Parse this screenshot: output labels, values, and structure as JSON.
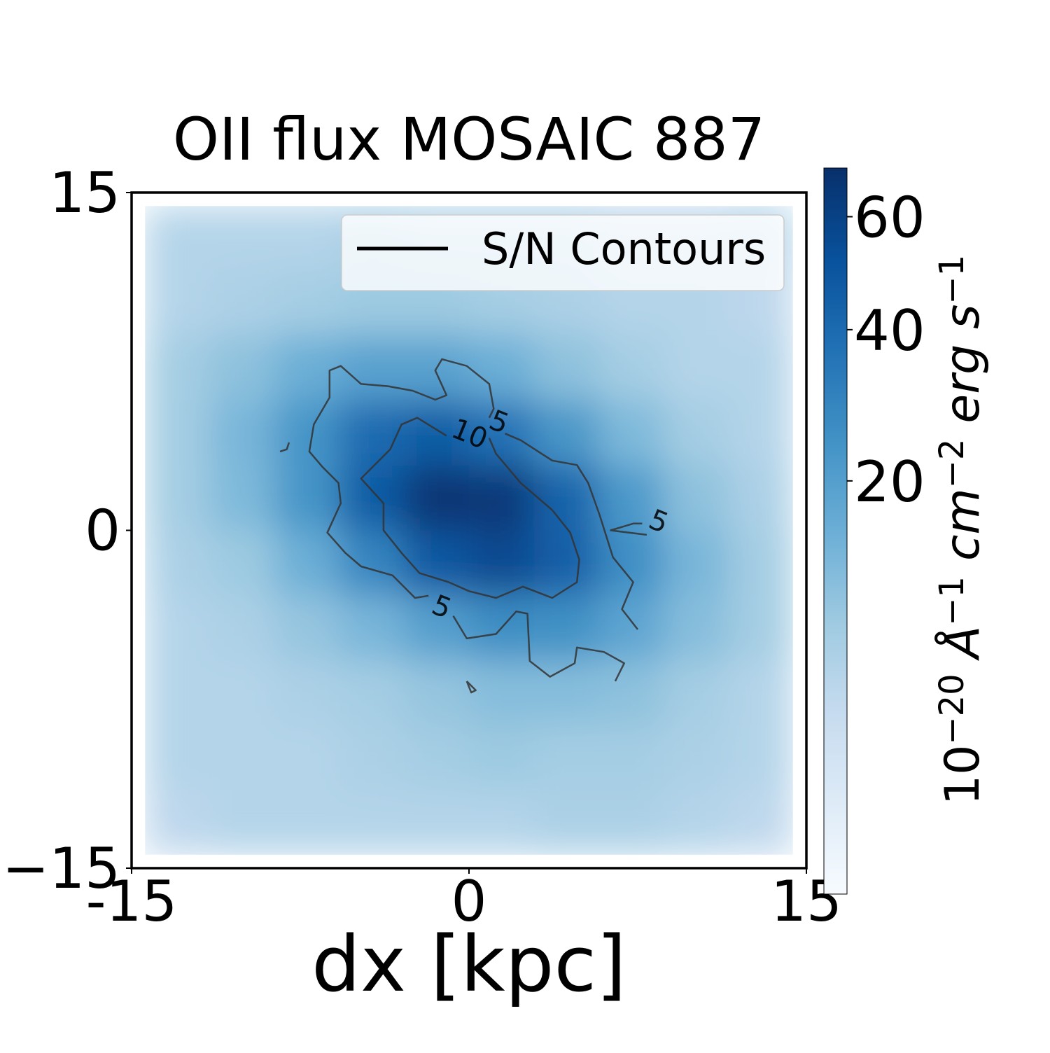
{
  "chart_data": {
    "type": "heatmap",
    "title": "OII flux MOSAIC 887",
    "xlabel": "dx [kpc]",
    "xlim": [
      -15,
      15
    ],
    "ylim": [
      -15,
      15
    ],
    "xticks": [
      -15,
      0,
      15
    ],
    "yticks": [
      {
        "value": -15,
        "label": "−15"
      },
      0,
      15
    ],
    "extent": [
      -14.4,
      14.4,
      -14.4,
      14.4
    ],
    "z": [
      [
        5,
        5,
        5,
        6,
        5,
        5,
        5,
        4,
        4,
        5
      ],
      [
        5,
        6,
        7,
        8,
        8,
        7,
        6,
        5,
        5,
        4
      ],
      [
        7,
        10,
        15,
        19,
        19,
        15,
        10,
        7,
        5,
        5
      ],
      [
        7,
        13,
        24,
        40,
        46,
        37,
        23,
        12,
        7,
        5
      ],
      [
        7,
        12,
        24,
        47,
        67,
        65,
        43,
        22,
        10,
        6
      ],
      [
        6,
        8,
        15,
        29,
        48,
        56,
        45,
        26,
        13,
        7
      ],
      [
        5,
        6,
        9,
        13,
        20,
        26,
        25,
        18,
        11,
        7
      ],
      [
        5,
        5,
        6,
        7,
        9,
        11,
        11,
        10,
        7,
        5
      ],
      [
        5,
        5,
        5,
        6,
        7,
        8,
        7,
        7,
        6,
        5
      ],
      [
        4,
        5,
        5,
        5,
        5,
        5,
        6,
        6,
        5,
        4
      ]
    ],
    "colormap": [
      "#f7fbff",
      "#deebf7",
      "#c6dbef",
      "#9ecae1",
      "#6baed6",
      "#4292c6",
      "#2171b5",
      "#08519c",
      "#08306b"
    ],
    "norm": {
      "type": "power",
      "gamma": 0.45
    },
    "clim": [
      0,
      70
    ],
    "cticks": [
      20,
      40,
      60
    ],
    "colorbar_label": [
      {
        "base": "10",
        "sup": "−20"
      },
      {
        "base": "Å",
        "sup": "−1"
      },
      {
        "base": "cm",
        "sup": "−2"
      },
      {
        "base": "erg s",
        "sup": "−1"
      }
    ],
    "contour_color": "#333333",
    "contours": [
      {
        "level": 10,
        "x": [
          -1.0,
          -2.3,
          -3.0,
          -3.5,
          -4.8,
          -3.8,
          -3.8,
          -3.0,
          -2.2,
          -0.9,
          0.0,
          1.2,
          2.4,
          3.7,
          4.8,
          4.9,
          4.5,
          3.7,
          2.3,
          1.2,
          0.9
        ],
        "y": [
          4.2,
          5.0,
          4.7,
          3.6,
          2.3,
          1.2,
          0.0,
          -1.0,
          -1.9,
          -2.3,
          -2.7,
          -3.0,
          -2.5,
          -3.0,
          -2.3,
          -1.3,
          -0.1,
          0.9,
          2.1,
          3.4,
          4.1
        ]
      },
      {
        "level": 5,
        "x": [
          -1.8,
          -2.4,
          -3.4,
          -4.8,
          -5.5,
          -6.3,
          -5.7,
          -5.8,
          -6.5,
          -7.1,
          -6.9,
          -6.2,
          -6.2,
          -5.7,
          -4.8,
          -3.6,
          -2.5,
          -1.5,
          -1.0,
          -1.5,
          -1.2,
          -0.1,
          0.9,
          1.1,
          0.9
        ],
        "y": [
          -2.9,
          -3.0,
          -2.0,
          -1.6,
          -1.0,
          -0.1,
          1.2,
          2.1,
          2.8,
          3.5,
          4.7,
          5.9,
          7.1,
          7.3,
          6.5,
          6.4,
          6.2,
          5.8,
          6.0,
          7.1,
          7.6,
          7.3,
          6.5,
          5.4,
          5.0
        ]
      },
      {
        "level": 5,
        "x": [
          1.6,
          2.3,
          3.7,
          4.8,
          5.3,
          5.8,
          6.4,
          7.3,
          6.8,
          7.5
        ],
        "y": [
          4.3,
          4.0,
          3.1,
          2.9,
          2.1,
          0.7,
          -1.2,
          -2.3,
          -3.5,
          -4.4
        ]
      },
      {
        "level": 5,
        "x": [
          7.7,
          7.3,
          6.3,
          7.9
        ],
        "y": [
          0.3,
          0.3,
          0.0,
          -0.2
        ]
      },
      {
        "level": 5,
        "x": [
          6.5,
          6.9,
          6.0,
          4.8,
          4.7,
          3.6,
          2.7,
          2.6,
          2.1,
          1.2,
          -0.1,
          -0.7
        ],
        "y": [
          -6.7,
          -5.9,
          -5.4,
          -5.2,
          -5.9,
          -6.5,
          -5.8,
          -3.7,
          -3.6,
          -4.6,
          -4.8,
          -3.8
        ]
      },
      {
        "level": 5,
        "x": [
          -8.0,
          -8.1,
          -8.4
        ],
        "y": [
          3.9,
          3.6,
          3.5
        ]
      },
      {
        "level": 5,
        "x": [
          -0.1,
          0.1,
          0.3,
          -0.1
        ],
        "y": [
          -6.7,
          -7.2,
          -7.1,
          -6.7
        ]
      }
    ],
    "legend": {
      "label": "S/N Contours",
      "loc": "upper right"
    }
  }
}
